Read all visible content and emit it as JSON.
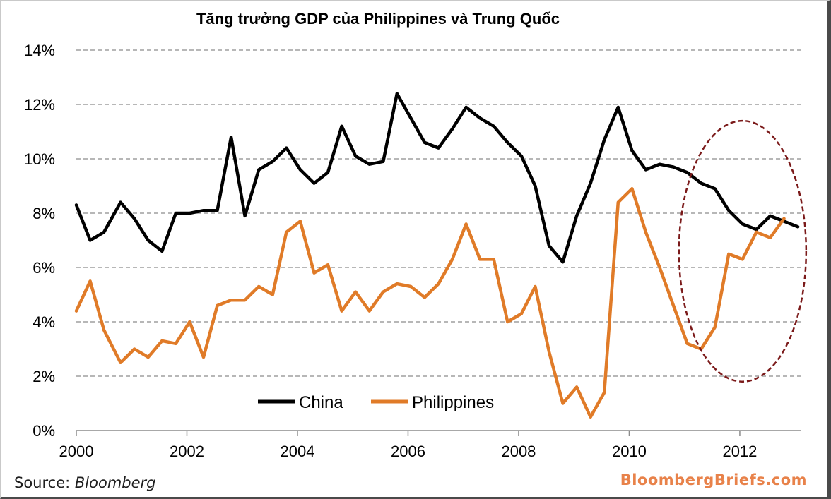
{
  "chart_data": {
    "type": "line",
    "title": "Tăng trưởng GDP của Philippines và Trung Quốc",
    "xlabel": "",
    "ylabel": "",
    "x_ticks": [
      "2000",
      "2002",
      "2004",
      "2006",
      "2008",
      "2010",
      "2012"
    ],
    "y_ticks": [
      "0%",
      "2%",
      "4%",
      "6%",
      "8%",
      "10%",
      "12%",
      "14%"
    ],
    "xlim": [
      2000,
      2013.1
    ],
    "ylim": [
      0,
      14
    ],
    "grid": "horizontal dashed",
    "legend": "bottom-center",
    "series": [
      {
        "name": "China",
        "color": "#000000",
        "points": [
          [
            2000.0,
            8.3
          ],
          [
            2000.25,
            7.0
          ],
          [
            2000.5,
            7.3
          ],
          [
            2000.8,
            8.4
          ],
          [
            2001.05,
            7.8
          ],
          [
            2001.3,
            7.0
          ],
          [
            2001.55,
            6.6
          ],
          [
            2001.8,
            8.0
          ],
          [
            2002.05,
            8.0
          ],
          [
            2002.3,
            8.1
          ],
          [
            2002.55,
            8.1
          ],
          [
            2002.8,
            10.8
          ],
          [
            2003.05,
            7.9
          ],
          [
            2003.3,
            9.6
          ],
          [
            2003.55,
            9.9
          ],
          [
            2003.8,
            10.4
          ],
          [
            2004.05,
            9.6
          ],
          [
            2004.3,
            9.1
          ],
          [
            2004.55,
            9.5
          ],
          [
            2004.8,
            11.2
          ],
          [
            2005.05,
            10.1
          ],
          [
            2005.3,
            9.8
          ],
          [
            2005.55,
            9.9
          ],
          [
            2005.8,
            12.4
          ],
          [
            2006.05,
            11.5
          ],
          [
            2006.3,
            10.6
          ],
          [
            2006.55,
            10.4
          ],
          [
            2006.8,
            11.1
          ],
          [
            2007.05,
            11.9
          ],
          [
            2007.3,
            11.5
          ],
          [
            2007.55,
            11.2
          ],
          [
            2007.8,
            10.6
          ],
          [
            2008.05,
            10.1
          ],
          [
            2008.3,
            9.0
          ],
          [
            2008.55,
            6.8
          ],
          [
            2008.8,
            6.2
          ],
          [
            2009.05,
            7.9
          ],
          [
            2009.3,
            9.1
          ],
          [
            2009.55,
            10.7
          ],
          [
            2009.8,
            11.9
          ],
          [
            2010.05,
            10.3
          ],
          [
            2010.3,
            9.6
          ],
          [
            2010.55,
            9.8
          ],
          [
            2010.8,
            9.7
          ],
          [
            2011.05,
            9.5
          ],
          [
            2011.3,
            9.1
          ],
          [
            2011.55,
            8.9
          ],
          [
            2011.8,
            8.1
          ],
          [
            2012.05,
            7.6
          ],
          [
            2012.3,
            7.4
          ],
          [
            2012.55,
            7.9
          ],
          [
            2012.8,
            7.7
          ],
          [
            2013.05,
            7.5
          ]
        ]
      },
      {
        "name": "Philippines",
        "color": "#e07b28",
        "points": [
          [
            2000.0,
            4.4
          ],
          [
            2000.25,
            5.5
          ],
          [
            2000.5,
            3.7
          ],
          [
            2000.8,
            2.5
          ],
          [
            2001.05,
            3.0
          ],
          [
            2001.3,
            2.7
          ],
          [
            2001.55,
            3.3
          ],
          [
            2001.8,
            3.2
          ],
          [
            2002.05,
            4.0
          ],
          [
            2002.3,
            2.7
          ],
          [
            2002.55,
            4.6
          ],
          [
            2002.8,
            4.8
          ],
          [
            2003.05,
            4.8
          ],
          [
            2003.3,
            5.3
          ],
          [
            2003.55,
            5.0
          ],
          [
            2003.8,
            7.3
          ],
          [
            2004.05,
            7.7
          ],
          [
            2004.3,
            5.8
          ],
          [
            2004.55,
            6.1
          ],
          [
            2004.8,
            4.4
          ],
          [
            2005.05,
            5.1
          ],
          [
            2005.3,
            4.4
          ],
          [
            2005.55,
            5.1
          ],
          [
            2005.8,
            5.4
          ],
          [
            2006.05,
            5.3
          ],
          [
            2006.3,
            4.9
          ],
          [
            2006.55,
            5.4
          ],
          [
            2006.8,
            6.3
          ],
          [
            2007.05,
            7.6
          ],
          [
            2007.3,
            6.3
          ],
          [
            2007.55,
            6.3
          ],
          [
            2007.8,
            4.0
          ],
          [
            2008.05,
            4.3
          ],
          [
            2008.3,
            5.3
          ],
          [
            2008.55,
            2.9
          ],
          [
            2008.8,
            1.0
          ],
          [
            2009.05,
            1.6
          ],
          [
            2009.3,
            0.5
          ],
          [
            2009.55,
            1.4
          ],
          [
            2009.8,
            8.4
          ],
          [
            2010.05,
            8.9
          ],
          [
            2010.3,
            7.3
          ],
          [
            2010.55,
            6.0
          ],
          [
            2010.8,
            4.6
          ],
          [
            2011.05,
            3.2
          ],
          [
            2011.3,
            3.0
          ],
          [
            2011.55,
            3.8
          ],
          [
            2011.8,
            6.5
          ],
          [
            2012.05,
            6.3
          ],
          [
            2012.3,
            7.3
          ],
          [
            2012.55,
            7.1
          ],
          [
            2012.8,
            7.8
          ]
        ]
      }
    ],
    "annotation": {
      "type": "ellipse",
      "color": "#7b1a1a",
      "center": [
        2012.05,
        6.6
      ],
      "radius_x": 1.15,
      "radius_y": 4.8
    }
  },
  "footer": {
    "source_label": "Source: ",
    "source_name": "Bloomberg",
    "brand": "BloombergBriefs.com"
  }
}
